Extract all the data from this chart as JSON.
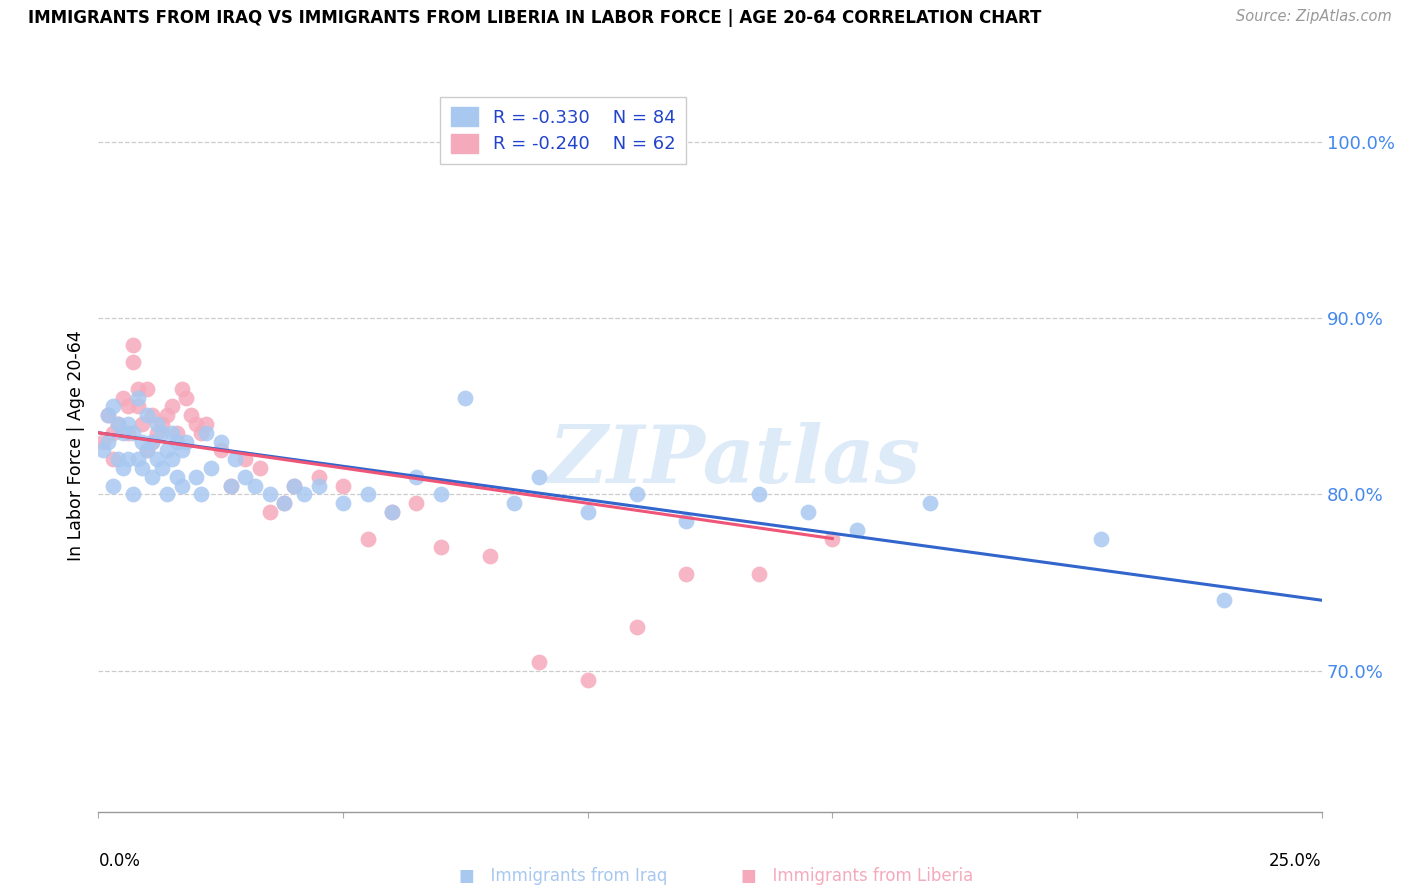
{
  "title": "IMMIGRANTS FROM IRAQ VS IMMIGRANTS FROM LIBERIA IN LABOR FORCE | AGE 20-64 CORRELATION CHART",
  "source": "Source: ZipAtlas.com",
  "ylabel": "In Labor Force | Age 20-64",
  "y_ticks": [
    70.0,
    80.0,
    90.0,
    100.0
  ],
  "y_tick_labels": [
    "70.0%",
    "80.0%",
    "90.0%",
    "100.0%"
  ],
  "x_range": [
    0.0,
    25.0
  ],
  "y_range": [
    62.0,
    103.5
  ],
  "iraq_color": "#a8c8f0",
  "liberia_color": "#f5aabb",
  "iraq_line_color": "#3366cc",
  "liberia_line_color": "#ee5577",
  "legend_iraq_R": "-0.330",
  "legend_iraq_N": "84",
  "legend_liberia_R": "-0.240",
  "legend_liberia_N": "62",
  "iraq_x": [
    0.1,
    0.2,
    0.2,
    0.3,
    0.3,
    0.4,
    0.4,
    0.5,
    0.5,
    0.6,
    0.6,
    0.7,
    0.7,
    0.8,
    0.8,
    0.9,
    0.9,
    1.0,
    1.0,
    1.1,
    1.1,
    1.2,
    1.2,
    1.3,
    1.3,
    1.4,
    1.4,
    1.5,
    1.5,
    1.6,
    1.6,
    1.7,
    1.7,
    1.8,
    2.0,
    2.1,
    2.2,
    2.3,
    2.5,
    2.7,
    2.8,
    3.0,
    3.2,
    3.5,
    3.8,
    4.0,
    4.2,
    4.5,
    5.0,
    5.5,
    6.0,
    6.5,
    7.0,
    7.5,
    8.5,
    9.0,
    10.0,
    11.0,
    12.0,
    13.5,
    14.5,
    15.5,
    17.0,
    20.5,
    23.0
  ],
  "iraq_y": [
    82.5,
    83.0,
    84.5,
    80.5,
    85.0,
    82.0,
    84.0,
    81.5,
    83.5,
    82.0,
    84.0,
    80.0,
    83.5,
    82.0,
    85.5,
    81.5,
    83.0,
    82.5,
    84.5,
    81.0,
    83.0,
    82.0,
    84.0,
    81.5,
    83.5,
    80.0,
    82.5,
    82.0,
    83.5,
    81.0,
    83.0,
    80.5,
    82.5,
    83.0,
    81.0,
    80.0,
    83.5,
    81.5,
    83.0,
    80.5,
    82.0,
    81.0,
    80.5,
    80.0,
    79.5,
    80.5,
    80.0,
    80.5,
    79.5,
    80.0,
    79.0,
    81.0,
    80.0,
    85.5,
    79.5,
    81.0,
    79.0,
    80.0,
    78.5,
    80.0,
    79.0,
    78.0,
    79.5,
    77.5,
    74.0
  ],
  "liberia_x": [
    0.1,
    0.2,
    0.3,
    0.3,
    0.4,
    0.5,
    0.6,
    0.6,
    0.7,
    0.7,
    0.8,
    0.8,
    0.9,
    1.0,
    1.0,
    1.1,
    1.1,
    1.2,
    1.3,
    1.4,
    1.5,
    1.6,
    1.7,
    1.8,
    1.9,
    2.0,
    2.1,
    2.2,
    2.5,
    2.7,
    3.0,
    3.3,
    3.5,
    3.8,
    4.0,
    4.5,
    5.0,
    5.5,
    6.0,
    6.5,
    7.0,
    8.0,
    9.0,
    10.0,
    11.0,
    12.0,
    13.5,
    15.0
  ],
  "liberia_y": [
    83.0,
    84.5,
    82.0,
    83.5,
    84.0,
    85.5,
    83.5,
    85.0,
    87.5,
    88.5,
    86.0,
    85.0,
    84.0,
    82.5,
    86.0,
    83.0,
    84.5,
    83.5,
    84.0,
    84.5,
    85.0,
    83.5,
    86.0,
    85.5,
    84.5,
    84.0,
    83.5,
    84.0,
    82.5,
    80.5,
    82.0,
    81.5,
    79.0,
    79.5,
    80.5,
    81.0,
    80.5,
    77.5,
    79.0,
    79.5,
    77.0,
    76.5,
    70.5,
    69.5,
    72.5,
    75.5,
    75.5,
    77.5
  ],
  "iraq_line_x0": 0.0,
  "iraq_line_x1": 25.0,
  "iraq_line_y0": 83.5,
  "iraq_line_y1": 74.0,
  "liberia_line_x0": 0.0,
  "liberia_line_x1": 15.0,
  "liberia_line_y0": 83.5,
  "liberia_line_y1": 77.5,
  "x_tick_positions": [
    0,
    5,
    10,
    15,
    20,
    25
  ],
  "watermark_text": "ZIPatlas",
  "legend_label_iraq": "Immigrants from Iraq",
  "legend_label_liberia": "Immigrants from Liberia"
}
